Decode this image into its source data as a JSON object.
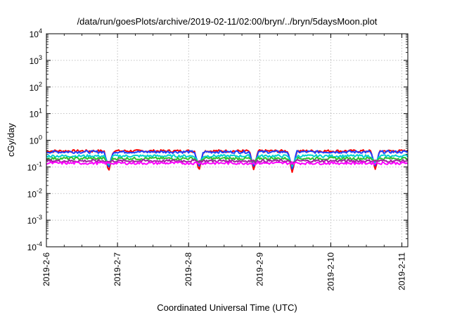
{
  "chart_data": {
    "type": "line",
    "title": "/data/run/goesPlots/archive/2019-02-11/02:00/bryn/../bryn/5daysMoon.plot",
    "xlabel": "Coordinated Universal Time (UTC)",
    "ylabel": "cGy/day",
    "yscale": "log",
    "ylim": [
      0.0001,
      10000
    ],
    "y_tick_labels": [
      {
        "base": "10",
        "exp": "-4"
      },
      {
        "base": "10",
        "exp": "-3"
      },
      {
        "base": "10",
        "exp": "-2"
      },
      {
        "base": "10",
        "exp": "-1"
      },
      {
        "base": "10",
        "exp": "0"
      },
      {
        "base": "10",
        "exp": "1"
      },
      {
        "base": "10",
        "exp": "2"
      },
      {
        "base": "10",
        "exp": "3"
      },
      {
        "base": "10",
        "exp": "4"
      }
    ],
    "xlim": [
      "2019-02-06T00:00",
      "2019-02-11T02:00"
    ],
    "x_tick_labels": [
      "2019-2-6",
      "2019-2-7",
      "2019-2-8",
      "2019-2-9",
      "2019-2-10",
      "2019-2-11"
    ],
    "grid": true,
    "legend": "none",
    "series": [
      {
        "color": "#ff0000",
        "base_value": 0.4
      },
      {
        "color": "#2040ff",
        "base_value": 0.37
      },
      {
        "color": "#00d0d0",
        "base_value": 0.26
      },
      {
        "color": "#30c030",
        "base_value": 0.21
      },
      {
        "color": "#a020a0",
        "base_value": 0.17
      },
      {
        "color": "#ff00ff",
        "base_value": 0.14
      }
    ],
    "dips": [
      {
        "x": "2019-02-06T21:00",
        "min": 0.065
      },
      {
        "x": "2019-02-08T03:30",
        "min": 0.07
      },
      {
        "x": "2019-02-08T22:00",
        "min": 0.075
      },
      {
        "x": "2019-02-09T11:00",
        "min": 0.06
      },
      {
        "x": "2019-02-10T15:00",
        "min": 0.08
      }
    ]
  }
}
